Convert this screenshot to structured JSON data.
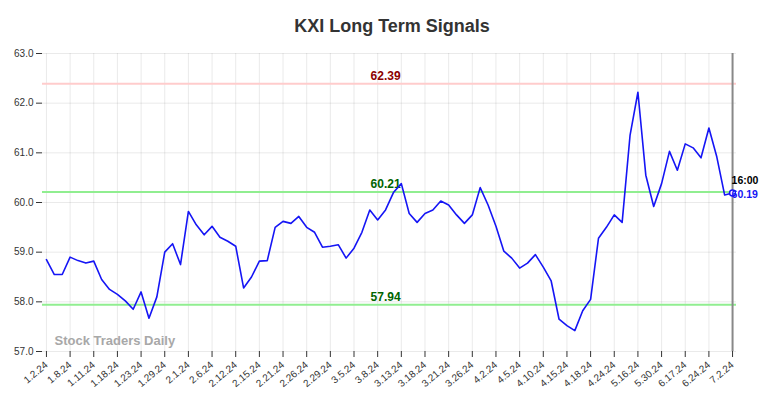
{
  "chart_data": {
    "type": "line",
    "title": "KXI Long Term Signals",
    "categories": [
      "1.2.24",
      null,
      null,
      "1.8.24",
      null,
      null,
      "1.11.24",
      null,
      null,
      "1.18.24",
      null,
      null,
      "1.23.24",
      null,
      null,
      "1.29.24",
      null,
      null,
      "2.1.24",
      null,
      null,
      "2.6.24",
      null,
      null,
      "2.12.24",
      null,
      null,
      "2.15.24",
      null,
      null,
      "2.21.24",
      null,
      null,
      "2.26.24",
      null,
      null,
      "2.29.24",
      null,
      null,
      "3.5.24",
      null,
      null,
      "3.8.24",
      null,
      null,
      "3.13.24",
      null,
      null,
      "3.18.24",
      null,
      null,
      "3.21.24",
      null,
      null,
      "3.26.24",
      null,
      null,
      "4.2.24",
      null,
      null,
      "4.5.24",
      null,
      null,
      "4.10.24",
      null,
      null,
      "4.15.24",
      null,
      null,
      "4.18.24",
      null,
      null,
      "4.24.24",
      null,
      null,
      "5.16.24",
      null,
      null,
      "5.30.24",
      null,
      null,
      "6.17.24",
      null,
      null,
      "6.24.24",
      null,
      null,
      "7.2.24"
    ],
    "values": [
      58.85,
      58.55,
      58.55,
      58.9,
      58.83,
      58.78,
      58.82,
      58.45,
      58.25,
      58.15,
      58.02,
      57.85,
      58.2,
      57.67,
      58.1,
      59.0,
      59.17,
      58.75,
      59.82,
      59.55,
      59.35,
      59.52,
      59.3,
      59.22,
      59.12,
      58.28,
      58.5,
      58.82,
      58.83,
      59.5,
      59.62,
      59.58,
      59.72,
      59.5,
      59.4,
      59.1,
      59.12,
      59.15,
      58.88,
      59.08,
      59.4,
      59.85,
      59.65,
      59.85,
      60.2,
      60.38,
      59.78,
      59.6,
      59.78,
      59.85,
      60.03,
      59.95,
      59.75,
      59.58,
      59.75,
      60.3,
      59.95,
      59.52,
      59.02,
      58.88,
      58.68,
      58.78,
      58.95,
      58.7,
      58.42,
      57.65,
      57.52,
      57.42,
      57.82,
      58.05,
      59.28,
      59.5,
      59.75,
      59.6,
      61.35,
      62.22,
      60.55,
      59.92,
      60.38,
      61.03,
      60.65,
      61.18,
      61.1,
      60.9,
      61.5,
      60.92,
      60.15,
      60.19
    ],
    "color": "#1515f5",
    "ylim": [
      57,
      63
    ],
    "yticks": [
      57,
      58,
      59,
      60,
      61,
      62,
      63
    ],
    "grid": true,
    "levels": [
      {
        "value": 62.39,
        "color": "#ffcccc",
        "label_color": "#8b0000"
      },
      {
        "value": 60.21,
        "color": "#90ee90",
        "label_color": "#006400"
      },
      {
        "value": 57.94,
        "color": "#90ee90",
        "label_color": "#006400"
      }
    ],
    "last_point": {
      "time": "16:00",
      "value": 60.19
    },
    "watermark": "Stock Traders Daily"
  }
}
